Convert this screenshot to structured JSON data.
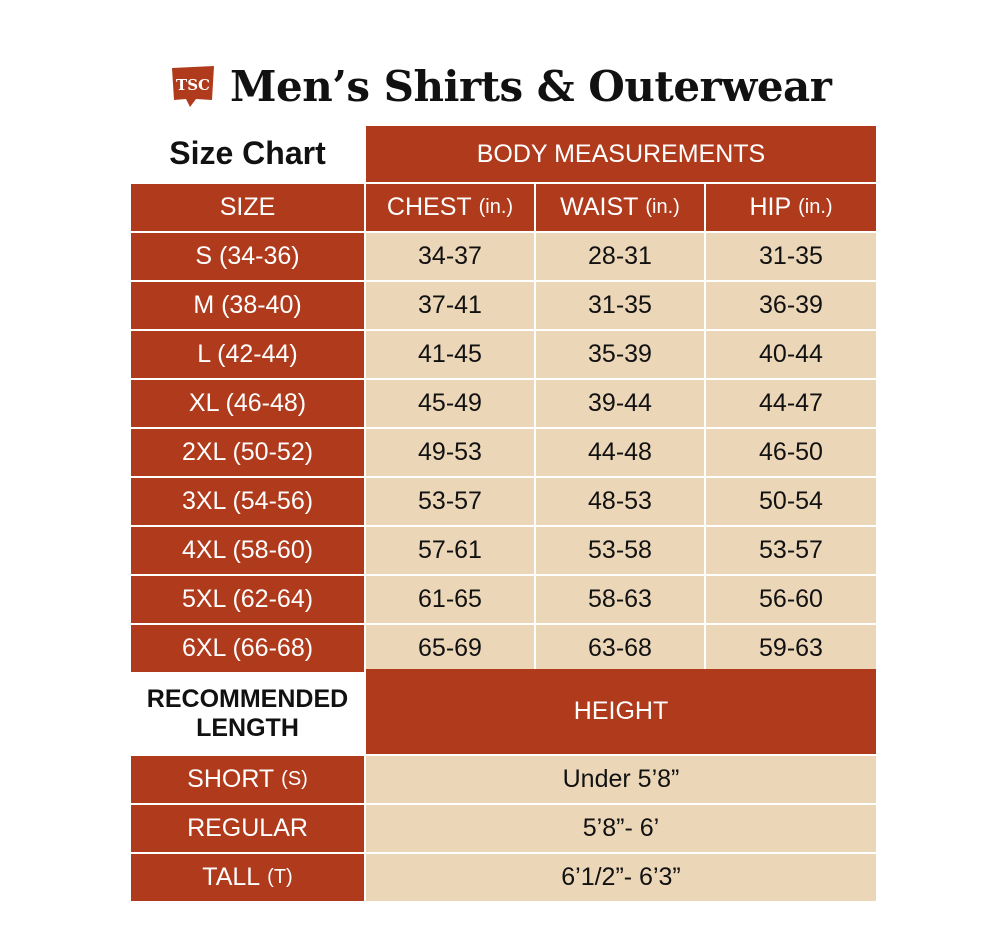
{
  "header": {
    "logo_text": "TSC",
    "title": "Men’s Shirts & Outerwear"
  },
  "colors": {
    "brand_red": "#b03a1c",
    "cell_tan": "#ecd6b8",
    "text_dark": "#111111"
  },
  "size_table": {
    "corner_label": "Size Chart",
    "group_header": "BODY MEASUREMENTS",
    "columns": [
      {
        "label": "SIZE",
        "unit": ""
      },
      {
        "label": "CHEST",
        "unit": "(in.)"
      },
      {
        "label": "WAIST",
        "unit": "(in.)"
      },
      {
        "label": "HIP",
        "unit": "(in.)"
      }
    ],
    "rows": [
      {
        "size": "S (34-36)",
        "chest": "34-37",
        "waist": "28-31",
        "hip": "31-35"
      },
      {
        "size": "M (38-40)",
        "chest": "37-41",
        "waist": "31-35",
        "hip": "36-39"
      },
      {
        "size": "L (42-44)",
        "chest": "41-45",
        "waist": "35-39",
        "hip": "40-44"
      },
      {
        "size": "XL (46-48)",
        "chest": "45-49",
        "waist": "39-44",
        "hip": "44-47"
      },
      {
        "size": "2XL (50-52)",
        "chest": "49-53",
        "waist": "44-48",
        "hip": "46-50"
      },
      {
        "size": "3XL (54-56)",
        "chest": "53-57",
        "waist": "48-53",
        "hip": "50-54"
      },
      {
        "size": "4XL (58-60)",
        "chest": "57-61",
        "waist": "53-58",
        "hip": "53-57"
      },
      {
        "size": "5XL (62-64)",
        "chest": "61-65",
        "waist": "58-63",
        "hip": "56-60"
      },
      {
        "size": "6XL (66-68)",
        "chest": "65-69",
        "waist": "63-68",
        "hip": "59-63"
      }
    ]
  },
  "length_table": {
    "corner_label_line1": "RECOMMENDED",
    "corner_label_line2": "LENGTH",
    "header": "HEIGHT",
    "rows": [
      {
        "label": "SHORT",
        "abbr": "(S)",
        "height": "Under 5’8”"
      },
      {
        "label": "REGULAR",
        "abbr": "",
        "height": "5’8”- 6’"
      },
      {
        "label": "TALL",
        "abbr": "(T)",
        "height": "6’1/2”- 6’3”"
      }
    ]
  }
}
